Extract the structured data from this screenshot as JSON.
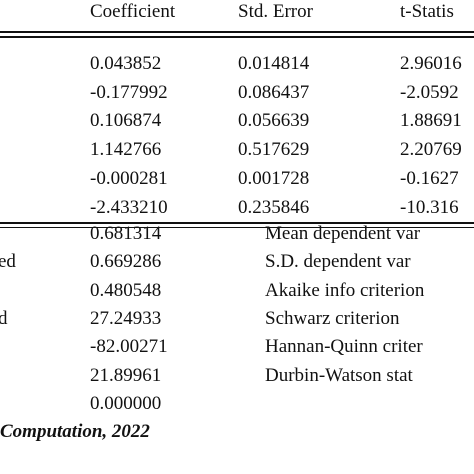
{
  "table": {
    "header": [
      "Coefficient",
      "Std. Error",
      "t-Statis"
    ],
    "rows": [
      [
        "0.043852",
        "0.014814",
        "2.96016"
      ],
      [
        "-0.177992",
        "0.086437",
        "-2.0592"
      ],
      [
        "0.106874",
        "0.056639",
        "1.88691"
      ],
      [
        "1.142766",
        "0.517629",
        "2.20769"
      ],
      [
        "-0.000281",
        "0.001728",
        "-0.1627"
      ],
      [
        "-2.433210",
        "0.235846",
        "-10.316"
      ]
    ]
  },
  "stats": {
    "rows": [
      {
        "value": "0.681314",
        "right": "Mean dependent var"
      },
      {
        "left": "ed",
        "value": "0.669286",
        "right": "S.D. dependent var"
      },
      {
        "value": "0.480548",
        "right": "Akaike info criterion"
      },
      {
        "left": "d",
        "value": "27.24933",
        "right": "Schwarz criterion"
      },
      {
        "value": "-82.00271",
        "right": "Hannan-Quinn criter"
      },
      {
        "value": "21.89961",
        "right": "Durbin-Watson stat"
      },
      {
        "value": "0.000000"
      }
    ]
  },
  "footer": "Computation, 2022"
}
